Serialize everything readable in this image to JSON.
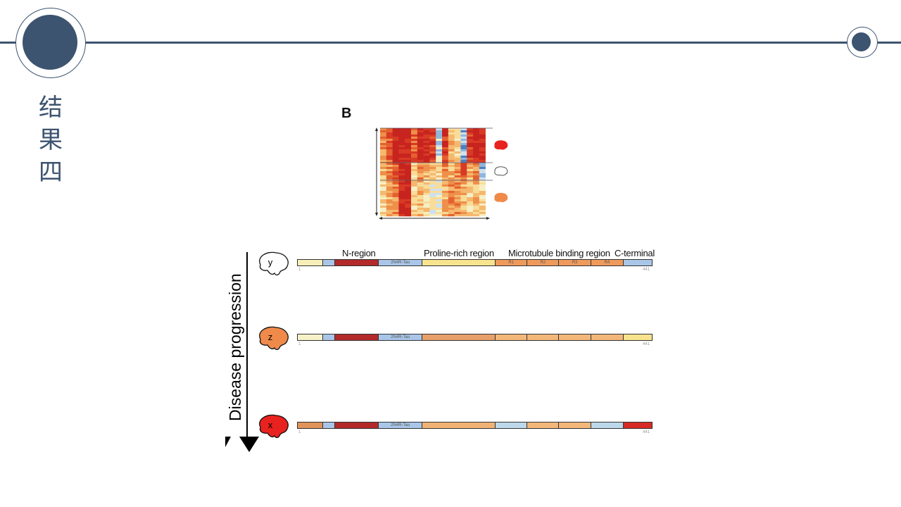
{
  "slide": {
    "title_chars": [
      "结",
      "果",
      "四"
    ],
    "accent_color": "#3d5470"
  },
  "figure": {
    "panel_label": "B",
    "axis_label": "Disease progression",
    "region_labels": [
      "N-region",
      "Proline-rich region",
      "Microtubule binding region",
      "C-terminal"
    ],
    "protein_label": "2N4R-Tau",
    "start_residue": "1",
    "end_residue": "441",
    "repeat_labels": [
      "R1",
      "R2",
      "R3",
      "R4"
    ],
    "segment_fractions": [
      0.072,
      0.034,
      0.123,
      0.123,
      0.207,
      0.09,
      0.089,
      0.091,
      0.091,
      0.08
    ],
    "rows": [
      {
        "stage": "y",
        "brain_color": "#ffffff",
        "segments": [
          "#f8efb8",
          "#a9c6e8",
          "#b22a2a",
          "#a9c6e8",
          "#f8e38e",
          "#ee9a5c",
          "#ee9a5c",
          "#ee9a5c",
          "#ee9a5c",
          "#a9c6e8"
        ]
      },
      {
        "stage": "z",
        "brain_color": "#f08a4b",
        "segments": [
          "#f6f1c8",
          "#a9c6e8",
          "#b22a2a",
          "#a9c6e8",
          "#e8a06a",
          "#f3b77a",
          "#f3b77a",
          "#f3b77a",
          "#f3b77a",
          "#f8e38e"
        ]
      },
      {
        "stage": "x",
        "brain_color": "#e8221e",
        "segments": [
          "#e0935a",
          "#a9c6e8",
          "#b22a2a",
          "#a9c6e8",
          "#f0b275",
          "#bcd8ea",
          "#f3b77a",
          "#f3b77a",
          "#bcd8ea",
          "#d52b24"
        ]
      }
    ],
    "heatmap_group_colors": [
      "#e8221e",
      "#ffffff",
      "#f08a4b"
    ]
  }
}
